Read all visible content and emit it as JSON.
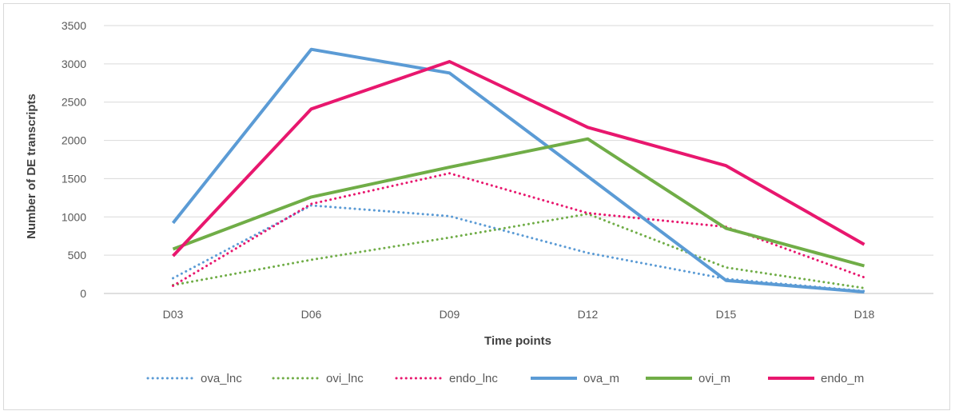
{
  "chart_data": {
    "type": "line",
    "title": "",
    "xlabel": "Time points",
    "ylabel": "Number of DE transcripts",
    "categories": [
      "D03",
      "D06",
      "D09",
      "D12",
      "D15",
      "D18"
    ],
    "ylim": [
      0,
      3500
    ],
    "yticks": [
      0,
      500,
      1000,
      1500,
      2000,
      2500,
      3000,
      3500
    ],
    "grid": true,
    "legend_position": "bottom",
    "series": [
      {
        "name": "ova_lnc",
        "color": "#5b9bd5",
        "dash": "dotted",
        "values": [
          200,
          1150,
          1010,
          530,
          190,
          30
        ]
      },
      {
        "name": "ovi_lnc",
        "color": "#70ad47",
        "dash": "dotted",
        "values": [
          110,
          440,
          730,
          1040,
          340,
          70
        ]
      },
      {
        "name": "endo_lnc",
        "color": "#e8176e",
        "dash": "dotted",
        "values": [
          100,
          1170,
          1570,
          1050,
          870,
          210
        ]
      },
      {
        "name": "ova_m",
        "color": "#5b9bd5",
        "dash": "solid",
        "values": [
          920,
          3190,
          2880,
          1530,
          170,
          20
        ]
      },
      {
        "name": "ovi_m",
        "color": "#70ad47",
        "dash": "solid",
        "values": [
          580,
          1260,
          1650,
          2020,
          850,
          360
        ]
      },
      {
        "name": "endo_m",
        "color": "#e8176e",
        "dash": "solid",
        "values": [
          490,
          2410,
          3030,
          2170,
          1670,
          640
        ]
      }
    ]
  }
}
